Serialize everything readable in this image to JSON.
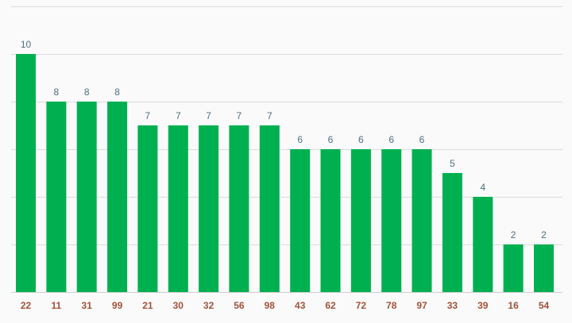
{
  "colors": {
    "bar": "#00b050",
    "value_label": "#4e6e80",
    "tick_label": "#a0523a",
    "grid": "#dcdcdc",
    "background": "#fafafa"
  },
  "chart_data": {
    "type": "bar",
    "categories": [
      "22",
      "11",
      "31",
      "99",
      "21",
      "30",
      "32",
      "56",
      "98",
      "43",
      "62",
      "72",
      "78",
      "97",
      "33",
      "39",
      "16",
      "54"
    ],
    "values": [
      10,
      8,
      8,
      8,
      7,
      7,
      7,
      7,
      7,
      6,
      6,
      6,
      6,
      6,
      5,
      4,
      2,
      2
    ],
    "ylim": [
      0,
      12
    ],
    "grid": true,
    "data_labels": true
  }
}
